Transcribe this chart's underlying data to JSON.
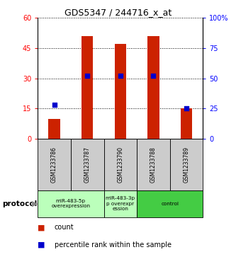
{
  "title": "GDS5347 / 244716_x_at",
  "samples": [
    "GSM1233786",
    "GSM1233787",
    "GSM1233790",
    "GSM1233788",
    "GSM1233789"
  ],
  "counts": [
    10,
    51,
    47,
    51,
    15
  ],
  "percentiles": [
    28,
    52,
    52,
    52,
    25
  ],
  "bar_color": "#cc2200",
  "dot_color": "#0000cc",
  "ylim_left": [
    0,
    60
  ],
  "ylim_right": [
    0,
    100
  ],
  "yticks_left": [
    0,
    15,
    30,
    45,
    60
  ],
  "yticks_right": [
    0,
    25,
    50,
    75,
    100
  ],
  "ytick_labels_right": [
    "0",
    "25",
    "50",
    "75",
    "100%"
  ],
  "groups": [
    {
      "label": "miR-483-5p\noverexpression",
      "start": 0,
      "end": 2,
      "color": "#bbffbb"
    },
    {
      "label": "miR-483-3p\np overexpr\nession",
      "start": 2,
      "end": 3,
      "color": "#bbffbb"
    },
    {
      "label": "control",
      "start": 3,
      "end": 5,
      "color": "#44cc44"
    }
  ],
  "sample_box_color": "#cccccc",
  "legend_count_label": "count",
  "legend_pct_label": "percentile rank within the sample",
  "bar_width": 0.35
}
